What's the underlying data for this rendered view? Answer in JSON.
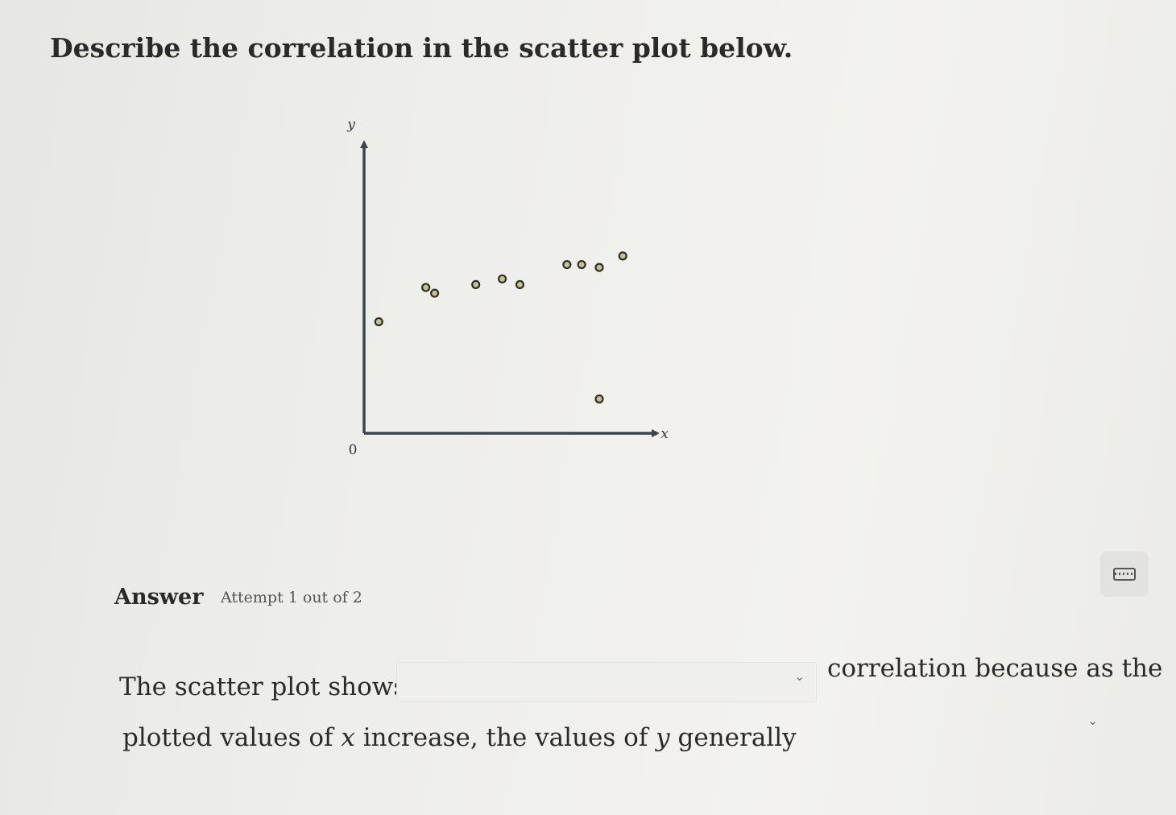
{
  "question": {
    "text": "Describe the correlation in the scatter plot below."
  },
  "chart_data": {
    "type": "scatter",
    "title": "",
    "xlabel": "x",
    "ylabel": "y",
    "origin_label": "0",
    "xlim": [
      0,
      10
    ],
    "ylim": [
      0,
      10
    ],
    "grid": false,
    "points": [
      {
        "x": 0.5,
        "y": 3.9
      },
      {
        "x": 2.1,
        "y": 5.1
      },
      {
        "x": 2.4,
        "y": 4.9
      },
      {
        "x": 3.8,
        "y": 5.2
      },
      {
        "x": 4.7,
        "y": 5.4
      },
      {
        "x": 5.3,
        "y": 5.2
      },
      {
        "x": 6.9,
        "y": 5.9
      },
      {
        "x": 7.4,
        "y": 5.9
      },
      {
        "x": 8.0,
        "y": 5.8
      },
      {
        "x": 8.8,
        "y": 6.2
      },
      {
        "x": 8.0,
        "y": 1.2
      }
    ],
    "colors": {
      "axis": "#3a4550",
      "point_fill": "#c9c28a",
      "point_stroke": "#2e2e2e"
    }
  },
  "answer": {
    "label": "Answer",
    "attempt": "Attempt 1 out of 2",
    "sentence_part1": "The scatter plot shows",
    "sentence_part2": "correlation because as the",
    "sentence_part3": "plotted values of 𝑥 increase, the values of 𝑦 generally"
  },
  "icons": {
    "keyboard": "keyboard-icon",
    "dropdown": "chevron-down-icon"
  }
}
